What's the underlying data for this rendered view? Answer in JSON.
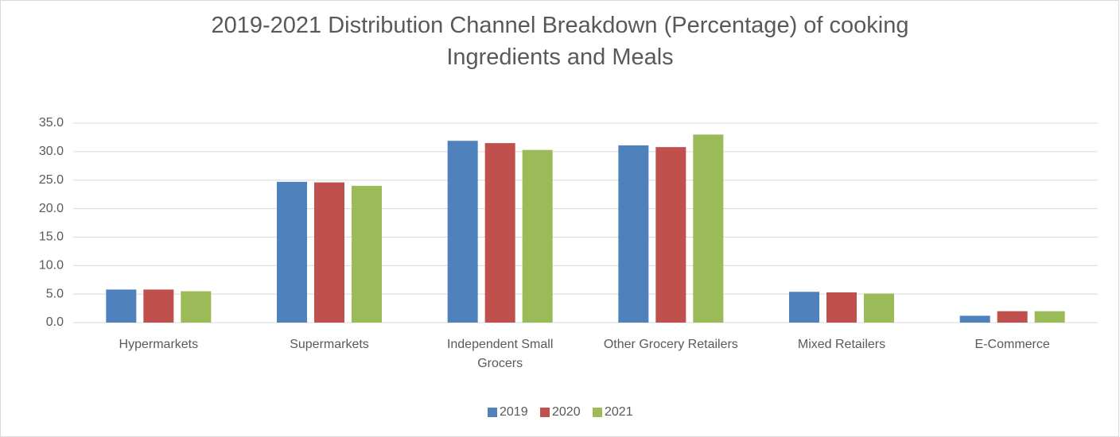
{
  "chart_data": {
    "type": "bar",
    "title": "2019-2021 Distribution Channel Breakdown (Percentage) of cooking Ingredients and Meals",
    "categories": [
      "Hypermarkets",
      "Supermarkets",
      "Independent Small Grocers",
      "Other Grocery Retailers",
      "Mixed Retailers",
      "E-Commerce"
    ],
    "series": [
      {
        "name": "2019",
        "color": "#4f81bd",
        "values": [
          5.8,
          24.7,
          31.9,
          31.1,
          5.4,
          1.2
        ]
      },
      {
        "name": "2020",
        "color": "#c0504d",
        "values": [
          5.8,
          24.6,
          31.5,
          30.8,
          5.3,
          2.0
        ]
      },
      {
        "name": "2021",
        "color": "#9bbb59",
        "values": [
          5.5,
          24.0,
          30.3,
          33.0,
          5.1,
          2.0
        ]
      }
    ],
    "ylim": [
      0,
      35
    ],
    "yticks": [
      {
        "value": 0,
        "label": "0.0"
      },
      {
        "value": 5,
        "label": "5.0"
      },
      {
        "value": 10,
        "label": "10.0"
      },
      {
        "value": 15,
        "label": "15.0"
      },
      {
        "value": 20,
        "label": "20.0"
      },
      {
        "value": 25,
        "label": "25.0"
      },
      {
        "value": 30,
        "label": "30.0"
      },
      {
        "value": 35,
        "label": "35.0"
      }
    ],
    "grid": true,
    "legend": "bottom"
  }
}
